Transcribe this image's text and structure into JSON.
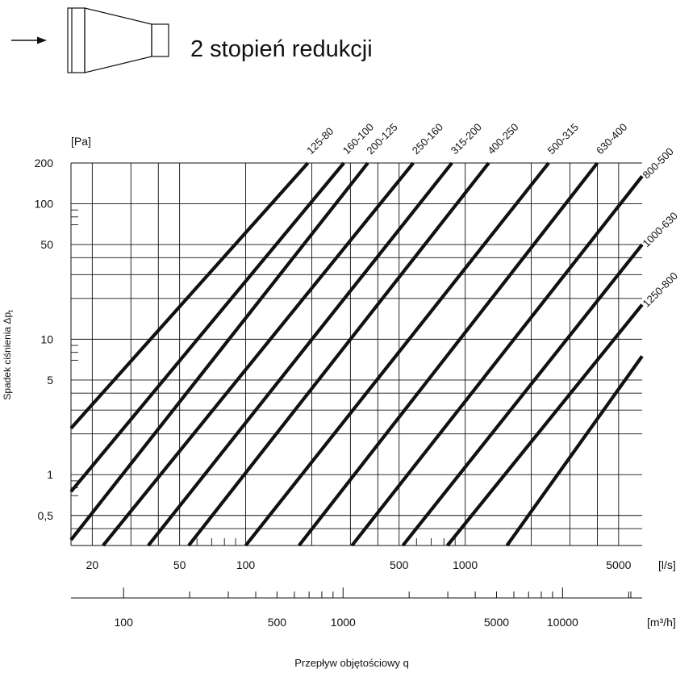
{
  "header": {
    "title": "2 stopień redukcji",
    "arrow_icon": "right-arrow-icon",
    "reducer_icon": "reducer-fitting-icon"
  },
  "chart_data": {
    "type": "line",
    "title": "2 stopień redukcji",
    "xlabel": "Przepływ objętościowy q",
    "ylabel": "Spadek ciśnienia Δp",
    "ylabel_subscript": "t",
    "y_unit": "[Pa]",
    "x_unit": "[l/s]",
    "x2_unit": "[m³/h]",
    "x_scale": "log",
    "y_scale": "log",
    "xlim": [
      16,
      6400
    ],
    "ylim": [
      0.3,
      200
    ],
    "x_ticks": [
      {
        "value": 20,
        "label": "20"
      },
      {
        "value": 50,
        "label": "50"
      },
      {
        "value": 100,
        "label": "100"
      },
      {
        "value": 500,
        "label": "500"
      },
      {
        "value": 1000,
        "label": "1000"
      },
      {
        "value": 5000,
        "label": "5000"
      }
    ],
    "x2_ticks": [
      {
        "value": 100,
        "label": "100"
      },
      {
        "value": 500,
        "label": "500"
      },
      {
        "value": 1000,
        "label": "1000"
      },
      {
        "value": 5000,
        "label": "5000"
      },
      {
        "value": 10000,
        "label": "10000"
      }
    ],
    "y_ticks": [
      {
        "value": 200,
        "label": "200"
      },
      {
        "value": 100,
        "label": "100"
      },
      {
        "value": 50,
        "label": "50"
      },
      {
        "value": 10,
        "label": "10"
      },
      {
        "value": 5,
        "label": "5"
      },
      {
        "value": 1,
        "label": "1"
      },
      {
        "value": 0.5,
        "label": "0,5"
      }
    ],
    "grid": true,
    "series": [
      {
        "name": "125-80",
        "x": [
          16,
          192
        ],
        "y": [
          2.2,
          200
        ]
      },
      {
        "name": "160-100",
        "x": [
          16,
          280
        ],
        "y": [
          0.75,
          200
        ]
      },
      {
        "name": "200-125",
        "x": [
          16,
          360
        ],
        "y": [
          0.33,
          200
        ]
      },
      {
        "name": "250-160",
        "x": [
          22.4,
          580
        ],
        "y": [
          0.3,
          200
        ]
      },
      {
        "name": "315-200",
        "x": [
          36,
          870
        ],
        "y": [
          0.3,
          200
        ]
      },
      {
        "name": "400-250",
        "x": [
          55,
          1280
        ],
        "y": [
          0.3,
          200
        ]
      },
      {
        "name": "500-315",
        "x": [
          100,
          2400
        ],
        "y": [
          0.3,
          200
        ]
      },
      {
        "name": "630-400",
        "x": [
          175,
          4000
        ],
        "y": [
          0.3,
          200
        ]
      },
      {
        "name": "800-500",
        "x": [
          305,
          6400
        ],
        "y": [
          0.3,
          160
        ]
      },
      {
        "name": "1000-630",
        "x": [
          520,
          6400
        ],
        "y": [
          0.3,
          50
        ]
      },
      {
        "name": "1250-800",
        "x": [
          830,
          6400
        ],
        "y": [
          0.3,
          18
        ]
      },
      {
        "name": "",
        "x": [
          1550,
          6400
        ],
        "y": [
          0.3,
          7.5
        ]
      }
    ]
  }
}
